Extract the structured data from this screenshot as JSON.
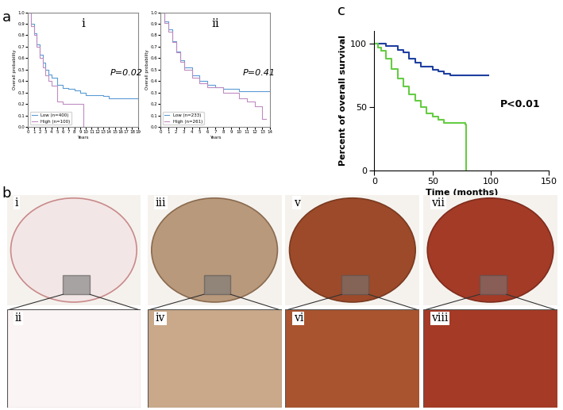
{
  "panel_labels": [
    "a",
    "b",
    "c"
  ],
  "chart_data": [
    {
      "type": "step",
      "title": "i",
      "x_label": "Years",
      "y_label": "Overall probability",
      "annotation": "P=0.02",
      "xlim": [
        0,
        19
      ],
      "xticks": [
        0,
        1,
        2,
        3,
        4,
        5,
        6,
        7,
        8,
        9,
        10,
        11,
        12,
        13,
        14,
        15,
        16,
        17,
        18,
        19
      ],
      "ylim": [
        0,
        1
      ],
      "yticks": [
        {
          "value": 0,
          "label": "0.0"
        },
        {
          "value": 0.1,
          "label": "0.1"
        },
        {
          "value": 0.2,
          "label": "0.2"
        },
        {
          "value": 0.3,
          "label": "0.3"
        },
        {
          "value": 0.4,
          "label": "0.4"
        },
        {
          "value": 0.5,
          "label": "0.5"
        },
        {
          "value": 0.6,
          "label": "0.6"
        },
        {
          "value": 0.7,
          "label": "0.7"
        },
        {
          "value": 0.8,
          "label": "0.8"
        },
        {
          "value": 0.9,
          "label": "0.9"
        },
        {
          "value": 1,
          "label": "1.0"
        }
      ],
      "legend": "lower left",
      "series": [
        {
          "name": "Low (n=400)",
          "color": "#5b9bd5",
          "x": [
            0,
            0.5,
            1,
            1.5,
            2,
            2.5,
            3,
            3.5,
            4,
            5,
            6,
            7,
            8,
            9,
            10,
            12,
            13,
            14,
            19
          ],
          "values": [
            1.0,
            0.9,
            0.82,
            0.72,
            0.63,
            0.56,
            0.5,
            0.46,
            0.43,
            0.37,
            0.34,
            0.33,
            0.32,
            0.3,
            0.28,
            0.28,
            0.27,
            0.25,
            0.25
          ]
        },
        {
          "name": "High (n=100)",
          "color": "#c08cc0",
          "x": [
            0,
            0.5,
            1,
            1.5,
            2,
            2.5,
            3,
            3.5,
            4,
            5,
            6,
            9,
            9.5
          ],
          "values": [
            1.0,
            0.88,
            0.8,
            0.7,
            0.6,
            0.52,
            0.45,
            0.4,
            0.36,
            0.22,
            0.2,
            0.2,
            0.0
          ]
        }
      ]
    },
    {
      "type": "step",
      "title": "ii",
      "x_label": "Years",
      "y_label": "Overall probability",
      "annotation": "P=0.41",
      "xlim": [
        0,
        14
      ],
      "xticks": [
        0,
        1,
        2,
        3,
        4,
        5,
        6,
        7,
        8,
        9,
        10,
        11,
        12,
        13,
        14
      ],
      "ylim": [
        0,
        1
      ],
      "yticks": [
        {
          "value": 0,
          "label": "0.0"
        },
        {
          "value": 0.1,
          "label": "0.1"
        },
        {
          "value": 0.2,
          "label": "0.2"
        },
        {
          "value": 0.3,
          "label": "0.3"
        },
        {
          "value": 0.4,
          "label": "0.4"
        },
        {
          "value": 0.5,
          "label": "0.5"
        },
        {
          "value": 0.6,
          "label": "0.6"
        },
        {
          "value": 0.7,
          "label": "0.7"
        },
        {
          "value": 0.8,
          "label": "0.8"
        },
        {
          "value": 0.9,
          "label": "0.9"
        },
        {
          "value": 1,
          "label": "1.0"
        }
      ],
      "legend": "lower left",
      "series": [
        {
          "name": "Low (n=233)",
          "color": "#5b9bd5",
          "x": [
            0,
            0.5,
            1,
            1.5,
            2,
            2.5,
            3,
            4,
            5,
            6,
            7,
            8,
            10,
            12,
            14
          ],
          "values": [
            1.0,
            0.92,
            0.85,
            0.75,
            0.66,
            0.58,
            0.52,
            0.45,
            0.4,
            0.37,
            0.35,
            0.33,
            0.31,
            0.31,
            0.31
          ]
        },
        {
          "name": "High (n=261)",
          "color": "#c08cc0",
          "x": [
            0,
            0.5,
            1,
            1.5,
            2,
            2.5,
            3,
            4,
            5,
            6,
            8,
            10,
            11,
            12,
            13,
            13.5
          ],
          "values": [
            1.0,
            0.91,
            0.83,
            0.74,
            0.65,
            0.57,
            0.5,
            0.43,
            0.38,
            0.35,
            0.3,
            0.25,
            0.22,
            0.18,
            0.07,
            0.07
          ]
        }
      ]
    },
    {
      "type": "step",
      "x_label": "Time (months)",
      "y_label": "Percent of overall survival",
      "annotation": "P<0.01",
      "xlim": [
        0,
        150
      ],
      "xticks": [
        0,
        50,
        100,
        150
      ],
      "ylim": [
        0,
        110
      ],
      "yticks": [
        0,
        50,
        100
      ],
      "series": [
        {
          "color": "#1f3fa0",
          "x": [
            0,
            5,
            10,
            20,
            25,
            30,
            35,
            40,
            50,
            55,
            60,
            65,
            70,
            98
          ],
          "values": [
            100,
            100,
            98,
            95,
            93,
            88,
            85,
            82,
            79,
            78,
            76,
            75,
            75,
            75
          ]
        },
        {
          "color": "#66cc44",
          "x": [
            0,
            3,
            6,
            10,
            15,
            20,
            25,
            30,
            35,
            40,
            45,
            50,
            55,
            60,
            78,
            79
          ],
          "values": [
            100,
            97,
            94,
            88,
            80,
            72,
            66,
            60,
            55,
            50,
            45,
            42,
            40,
            37,
            36,
            0
          ]
        }
      ]
    }
  ],
  "image_panels": {
    "labels": [
      "i",
      "ii",
      "iii",
      "iv",
      "v",
      "vi",
      "vii",
      "viii"
    ]
  }
}
